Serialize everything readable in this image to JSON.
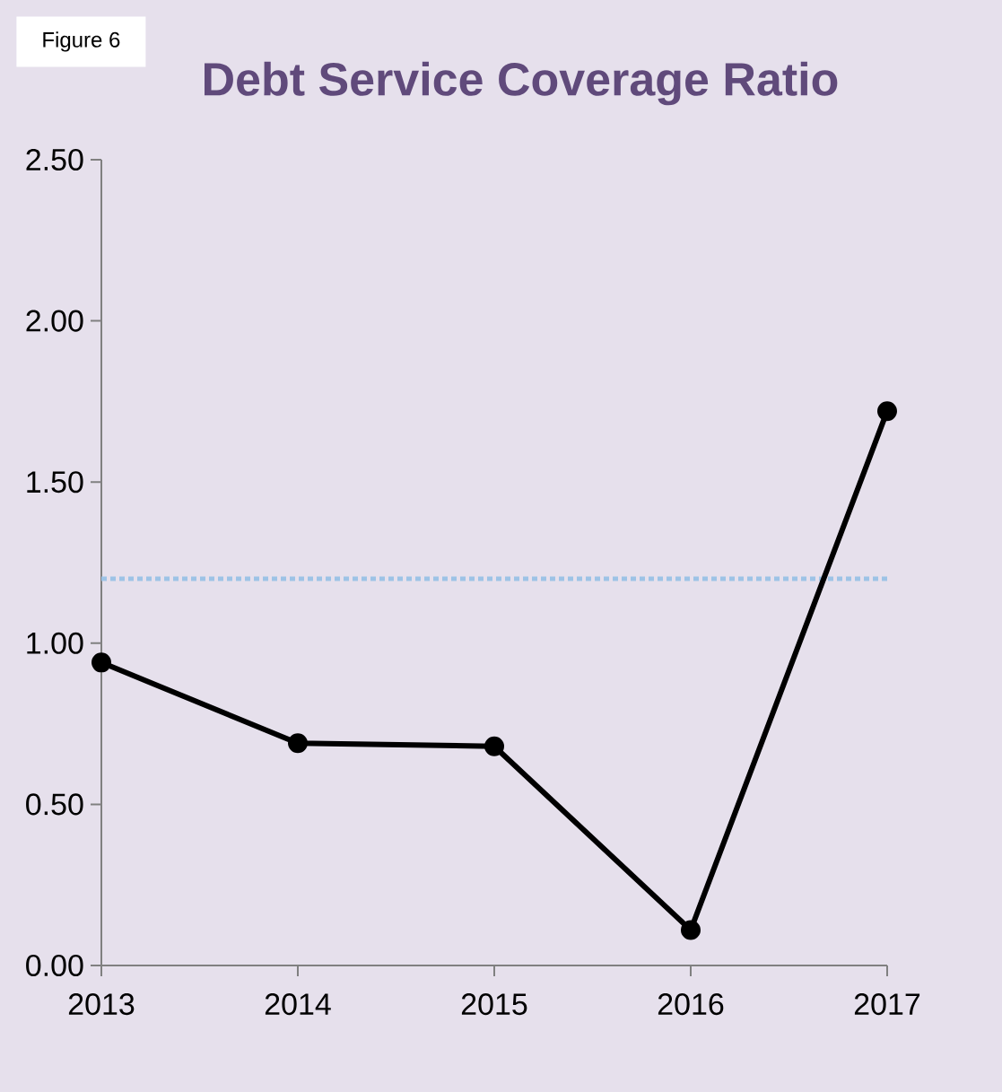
{
  "chart_data": {
    "type": "line",
    "title": "Debt Service Coverage Ratio",
    "annotations": [
      "Figure 6"
    ],
    "categories": [
      "2013",
      "2014",
      "2015",
      "2016",
      "2017"
    ],
    "series": [
      {
        "color": "#000000",
        "values": [
          0.94,
          0.69,
          0.68,
          0.11,
          1.72
        ]
      }
    ],
    "ylim": [
      0,
      2.5
    ],
    "yticks": [
      {
        "value": 0,
        "label": "0.00"
      },
      {
        "value": 0.5,
        "label": "0.50"
      },
      {
        "value": 1,
        "label": "1.00"
      },
      {
        "value": 1.5,
        "label": "1.50"
      },
      {
        "value": 2,
        "label": "2.00"
      },
      {
        "value": 2.5,
        "label": "2.50"
      }
    ],
    "ref_lines": [
      {
        "axis": "y",
        "value": 1.2,
        "color": "#9dc3e6",
        "line_style": "dotted"
      }
    ],
    "marker": "circle",
    "line_style": "solid"
  }
}
